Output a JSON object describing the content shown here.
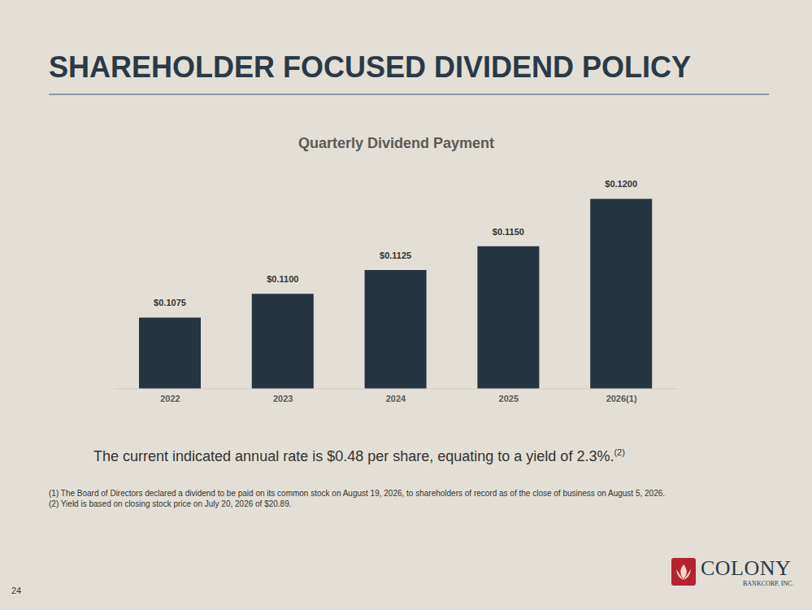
{
  "chart_data": {
    "type": "bar",
    "title": "Quarterly Dividend Payment",
    "categories": [
      "2022",
      "2023",
      "2024",
      "2025",
      "2026(1)"
    ],
    "values": [
      0.1075,
      0.11,
      0.1125,
      0.115,
      0.12
    ],
    "value_labels": [
      "$0.1075",
      "$0.1100",
      "$0.1125",
      "$0.1150",
      "$0.1200"
    ],
    "color": "#263340",
    "ylim": [
      0.1,
      0.125
    ],
    "yticks": [
      0.1,
      0.125
    ],
    "grid": false,
    "data_labels": true,
    "tick_labels": "x"
  },
  "slide": {
    "title": "SHAREHOLDER FOCUSED DIVIDEND POLICY",
    "note": "The current indicated annual rate is $0.48 per share, equating to a yield of 2.3%.",
    "note_superscript": "(2)",
    "footnotes": [
      "(1) The Board of Directors declared a dividend to be paid on its common stock on August 19, 2026, to shareholders of record as of the close of business on August 5, 2026.",
      "(2) Yield is based on closing stock price on July 20, 2026 of $20.89."
    ],
    "page": "24",
    "logo": [
      "COLONY",
      "BANKCORP, INC."
    ]
  }
}
